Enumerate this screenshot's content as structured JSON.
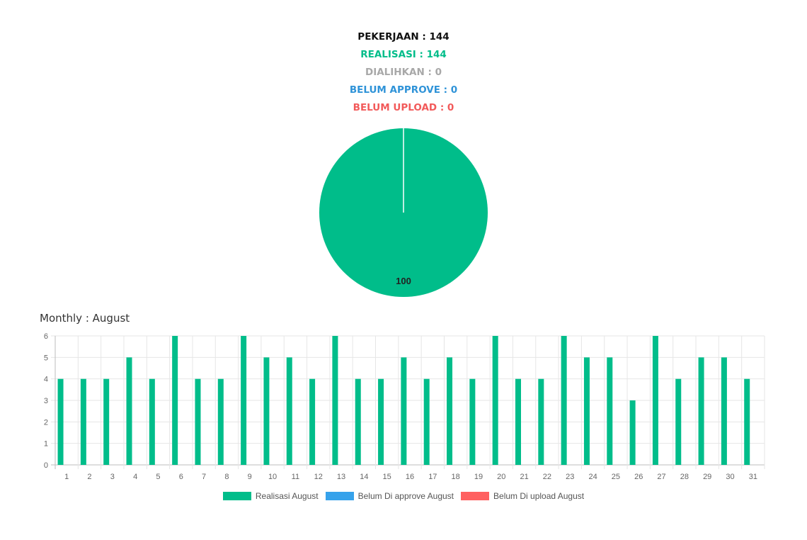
{
  "stats": {
    "total": "PEKERJAAN : 144",
    "realisasi": "REALISASI : 144",
    "dialihkan": "DIALIHKAN : 0",
    "belum_approve": "BELUM APPROVE : 0",
    "belum_upload": "BELUM UPLOAD : 0"
  },
  "monthly_title": "Monthly : August",
  "colors": {
    "realisasi": "#00bd8a",
    "belum_approve": "#36a2eb",
    "belum_upload": "#ff6060",
    "grid": "#e6e6e6",
    "axis_text": "#666666"
  },
  "chart_data": [
    {
      "type": "pie",
      "slices": [
        {
          "name": "Realisasi",
          "value": 100,
          "label": "100",
          "color": "#00bd8a"
        }
      ]
    },
    {
      "type": "bar",
      "title": "Monthly : August",
      "categories": [
        "1",
        "2",
        "3",
        "4",
        "5",
        "6",
        "7",
        "8",
        "9",
        "10",
        "11",
        "12",
        "13",
        "14",
        "15",
        "16",
        "17",
        "18",
        "19",
        "20",
        "21",
        "22",
        "23",
        "24",
        "25",
        "26",
        "27",
        "28",
        "29",
        "30",
        "31"
      ],
      "series": [
        {
          "name": "Realisasi August",
          "color": "#00bd8a",
          "values": [
            4,
            4,
            4,
            5,
            4,
            6,
            4,
            4,
            6,
            5,
            5,
            4,
            6,
            4,
            4,
            5,
            4,
            5,
            4,
            6,
            4,
            4,
            6,
            5,
            5,
            3,
            6,
            4,
            5,
            5,
            4
          ]
        },
        {
          "name": "Belum Di approve August",
          "color": "#36a2eb",
          "values": [
            0,
            0,
            0,
            0,
            0,
            0,
            0,
            0,
            0,
            0,
            0,
            0,
            0,
            0,
            0,
            0,
            0,
            0,
            0,
            0,
            0,
            0,
            0,
            0,
            0,
            0,
            0,
            0,
            0,
            0,
            0
          ]
        },
        {
          "name": "Belum Di upload August",
          "color": "#ff6060",
          "values": [
            0,
            0,
            0,
            0,
            0,
            0,
            0,
            0,
            0,
            0,
            0,
            0,
            0,
            0,
            0,
            0,
            0,
            0,
            0,
            0,
            0,
            0,
            0,
            0,
            0,
            0,
            0,
            0,
            0,
            0,
            0
          ]
        }
      ],
      "ylim": [
        0,
        6
      ],
      "yticks": [
        0,
        1,
        2,
        3,
        4,
        5,
        6
      ],
      "grid": true,
      "legend": "bottom"
    }
  ]
}
